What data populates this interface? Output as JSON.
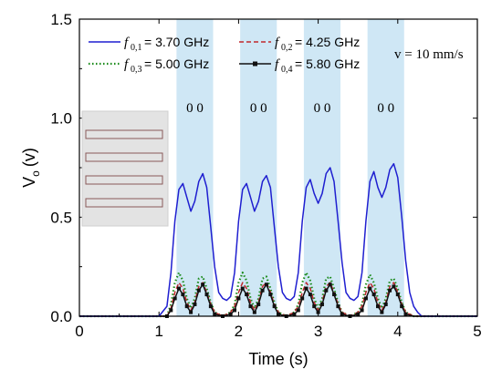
{
  "chart_data": {
    "type": "line",
    "xlabel": "Time (s)",
    "ylabel_main": "V",
    "ylabel_sub": "o",
    "ylabel_unit": "(v)",
    "xlim": [
      0,
      5
    ],
    "ylim": [
      0,
      1.5
    ],
    "x_ticks": [
      "0",
      "1",
      "2",
      "3",
      "4",
      "5"
    ],
    "y_ticks": [
      "0.0",
      "0.5",
      "1.0",
      "1.5"
    ],
    "annotation_velocity": "v = 10 mm/s",
    "bit_labels": [
      "0 0",
      "0 0",
      "0 0",
      "0 0"
    ],
    "highlight_bands": [
      [
        1.22,
        1.68
      ],
      [
        2.02,
        2.48
      ],
      [
        2.82,
        3.28
      ],
      [
        3.62,
        4.08
      ]
    ],
    "series": [
      {
        "label_main": "f",
        "label_sub": "0,1",
        "label_value": "= 3.70 GHz",
        "color": "#1f1fd0",
        "style": "solid",
        "x": [
          0,
          1.0,
          1.1,
          1.15,
          1.2,
          1.25,
          1.3,
          1.35,
          1.4,
          1.45,
          1.5,
          1.55,
          1.6,
          1.65,
          1.7,
          1.75,
          1.8,
          1.85,
          1.9,
          1.95,
          2.0,
          2.05,
          2.1,
          2.15,
          2.2,
          2.25,
          2.3,
          2.35,
          2.4,
          2.45,
          2.5,
          2.55,
          2.6,
          2.65,
          2.7,
          2.75,
          2.8,
          2.85,
          2.9,
          2.95,
          3.0,
          3.05,
          3.1,
          3.15,
          3.2,
          3.25,
          3.3,
          3.35,
          3.4,
          3.45,
          3.5,
          3.55,
          3.6,
          3.65,
          3.7,
          3.75,
          3.8,
          3.85,
          3.9,
          3.95,
          4.0,
          4.05,
          4.1,
          4.15,
          4.2,
          4.25,
          4.3,
          4.4,
          5.0
        ],
        "y": [
          0.0,
          0.0,
          0.05,
          0.22,
          0.48,
          0.64,
          0.67,
          0.6,
          0.53,
          0.58,
          0.68,
          0.72,
          0.65,
          0.45,
          0.25,
          0.12,
          0.09,
          0.08,
          0.1,
          0.22,
          0.48,
          0.64,
          0.67,
          0.6,
          0.53,
          0.58,
          0.68,
          0.71,
          0.65,
          0.45,
          0.25,
          0.12,
          0.09,
          0.08,
          0.1,
          0.22,
          0.48,
          0.65,
          0.69,
          0.62,
          0.57,
          0.62,
          0.72,
          0.75,
          0.68,
          0.48,
          0.27,
          0.12,
          0.09,
          0.08,
          0.1,
          0.22,
          0.48,
          0.68,
          0.73,
          0.65,
          0.6,
          0.65,
          0.74,
          0.77,
          0.7,
          0.5,
          0.28,
          0.12,
          0.05,
          0.02,
          0.0,
          0.0,
          0.0
        ]
      },
      {
        "label_main": "f",
        "label_sub": "0,2",
        "label_value": "= 4.25 GHz",
        "color": "#c0282d",
        "style": "dashed",
        "x": [
          0,
          1.1,
          1.15,
          1.2,
          1.25,
          1.3,
          1.35,
          1.4,
          1.45,
          1.5,
          1.55,
          1.6,
          1.65,
          1.7,
          1.8,
          1.9,
          1.95,
          2.0,
          2.05,
          2.1,
          2.15,
          2.2,
          2.25,
          2.3,
          2.35,
          2.4,
          2.45,
          2.5,
          2.6,
          2.7,
          2.75,
          2.8,
          2.85,
          2.9,
          2.95,
          3.0,
          3.05,
          3.1,
          3.15,
          3.2,
          3.25,
          3.3,
          3.4,
          3.5,
          3.55,
          3.6,
          3.65,
          3.7,
          3.75,
          3.8,
          3.85,
          3.9,
          3.95,
          4.0,
          4.05,
          4.1,
          4.2,
          5.0
        ],
        "y": [
          0.0,
          0.0,
          0.04,
          0.12,
          0.17,
          0.14,
          0.07,
          0.03,
          0.07,
          0.15,
          0.17,
          0.12,
          0.06,
          0.02,
          0.0,
          0.02,
          0.05,
          0.12,
          0.17,
          0.14,
          0.07,
          0.03,
          0.07,
          0.15,
          0.17,
          0.12,
          0.06,
          0.02,
          0.0,
          0.02,
          0.05,
          0.12,
          0.17,
          0.14,
          0.07,
          0.03,
          0.07,
          0.15,
          0.17,
          0.12,
          0.06,
          0.02,
          0.0,
          0.02,
          0.05,
          0.12,
          0.17,
          0.14,
          0.07,
          0.03,
          0.07,
          0.15,
          0.17,
          0.12,
          0.06,
          0.02,
          0.0,
          0.0
        ]
      },
      {
        "label_main": "f",
        "label_sub": "0,3",
        "label_value": "= 5.00 GHz",
        "color": "#1a8a1a",
        "style": "dotted",
        "x": [
          0,
          1.1,
          1.15,
          1.2,
          1.25,
          1.3,
          1.35,
          1.4,
          1.45,
          1.5,
          1.55,
          1.6,
          1.65,
          1.7,
          1.8,
          1.9,
          1.95,
          2.0,
          2.05,
          2.1,
          2.15,
          2.2,
          2.25,
          2.3,
          2.35,
          2.4,
          2.45,
          2.5,
          2.6,
          2.7,
          2.75,
          2.8,
          2.85,
          2.9,
          2.95,
          3.0,
          3.05,
          3.1,
          3.15,
          3.2,
          3.25,
          3.3,
          3.4,
          3.5,
          3.55,
          3.6,
          3.65,
          3.7,
          3.75,
          3.8,
          3.85,
          3.9,
          3.95,
          4.0,
          4.05,
          4.1,
          4.2,
          5.0
        ],
        "y": [
          0.0,
          0.0,
          0.06,
          0.17,
          0.22,
          0.18,
          0.09,
          0.04,
          0.09,
          0.19,
          0.2,
          0.14,
          0.07,
          0.02,
          0.0,
          0.02,
          0.06,
          0.17,
          0.22,
          0.18,
          0.09,
          0.04,
          0.09,
          0.19,
          0.2,
          0.14,
          0.07,
          0.02,
          0.0,
          0.02,
          0.06,
          0.17,
          0.22,
          0.18,
          0.09,
          0.04,
          0.09,
          0.19,
          0.2,
          0.14,
          0.07,
          0.02,
          0.0,
          0.02,
          0.06,
          0.16,
          0.21,
          0.17,
          0.09,
          0.04,
          0.09,
          0.18,
          0.19,
          0.14,
          0.07,
          0.02,
          0.0,
          0.0
        ]
      },
      {
        "label_main": "f",
        "label_sub": "0,4",
        "label_value": "= 5.80 GHz",
        "color": "#111111",
        "style": "solid-marker",
        "x": [
          0,
          1.1,
          1.15,
          1.2,
          1.25,
          1.3,
          1.35,
          1.4,
          1.45,
          1.5,
          1.55,
          1.6,
          1.65,
          1.7,
          1.8,
          1.9,
          1.95,
          2.0,
          2.05,
          2.1,
          2.15,
          2.2,
          2.25,
          2.3,
          2.35,
          2.4,
          2.45,
          2.5,
          2.6,
          2.7,
          2.75,
          2.8,
          2.85,
          2.9,
          2.95,
          3.0,
          3.05,
          3.1,
          3.15,
          3.2,
          3.25,
          3.3,
          3.4,
          3.5,
          3.55,
          3.6,
          3.65,
          3.7,
          3.75,
          3.8,
          3.85,
          3.9,
          3.95,
          4.0,
          4.05,
          4.1,
          4.2,
          5.0
        ],
        "y": [
          0.0,
          0.0,
          0.03,
          0.09,
          0.14,
          0.11,
          0.05,
          0.02,
          0.06,
          0.13,
          0.16,
          0.11,
          0.05,
          0.01,
          0.0,
          0.01,
          0.03,
          0.09,
          0.14,
          0.11,
          0.05,
          0.02,
          0.06,
          0.13,
          0.16,
          0.11,
          0.05,
          0.01,
          0.0,
          0.01,
          0.03,
          0.09,
          0.14,
          0.11,
          0.05,
          0.02,
          0.06,
          0.13,
          0.16,
          0.11,
          0.05,
          0.01,
          0.0,
          0.01,
          0.03,
          0.09,
          0.14,
          0.11,
          0.05,
          0.02,
          0.06,
          0.13,
          0.15,
          0.11,
          0.05,
          0.01,
          0.0,
          0.0
        ]
      }
    ]
  }
}
